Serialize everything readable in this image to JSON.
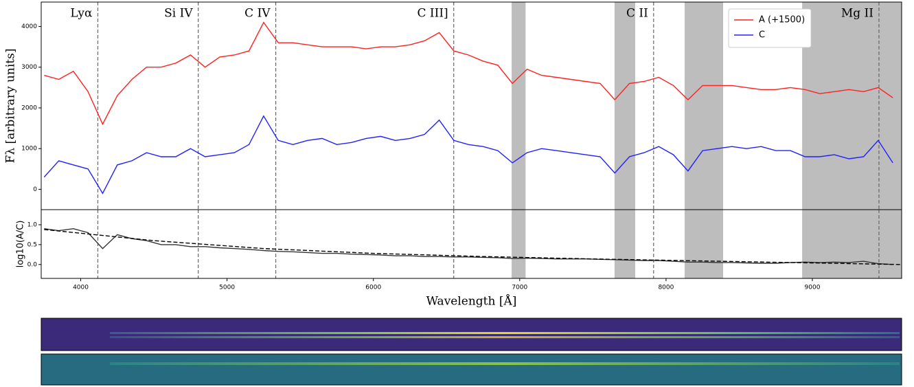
{
  "chart_data": [
    {
      "type": "line",
      "ylabel": "Fλ [arbitrary units]",
      "x": [
        3750,
        3850,
        3950,
        4050,
        4150,
        4250,
        4350,
        4450,
        4550,
        4650,
        4750,
        4850,
        4950,
        5050,
        5150,
        5250,
        5350,
        5450,
        5550,
        5650,
        5750,
        5850,
        5950,
        6050,
        6150,
        6250,
        6350,
        6450,
        6550,
        6650,
        6750,
        6850,
        6950,
        7050,
        7150,
        7250,
        7350,
        7450,
        7550,
        7650,
        7750,
        7850,
        7950,
        8050,
        8150,
        8250,
        8350,
        8450,
        8550,
        8650,
        8750,
        8850,
        8950,
        9050,
        9150,
        9250,
        9350,
        9450,
        9550
      ],
      "series": [
        {
          "name": "A (+1500)",
          "color": "#ff2020",
          "values": [
            2800,
            2700,
            2900,
            2400,
            1600,
            2300,
            2700,
            3000,
            3000,
            3100,
            3300,
            3000,
            3250,
            3300,
            3400,
            4100,
            3600,
            3600,
            3550,
            3500,
            3500,
            3500,
            3450,
            3500,
            3500,
            3550,
            3650,
            3850,
            3400,
            3300,
            3150,
            3050,
            2600,
            2950,
            2800,
            2750,
            2700,
            2650,
            2600,
            2200,
            2600,
            2650,
            2750,
            2550,
            2200,
            2550,
            2550,
            2550,
            2500,
            2450,
            2450,
            2500,
            2450,
            2350,
            2400,
            2450,
            2400,
            2500,
            2250
          ]
        },
        {
          "name": "C",
          "color": "#2020ff",
          "values": [
            300,
            700,
            600,
            500,
            -100,
            600,
            700,
            900,
            800,
            800,
            1000,
            800,
            850,
            900,
            1100,
            1800,
            1200,
            1100,
            1200,
            1250,
            1100,
            1150,
            1250,
            1300,
            1200,
            1250,
            1350,
            1700,
            1200,
            1100,
            1050,
            950,
            650,
            900,
            1000,
            950,
            900,
            850,
            800,
            400,
            800,
            900,
            1050,
            850,
            450,
            950,
            1000,
            1050,
            1000,
            1050,
            950,
            950,
            800,
            800,
            850,
            750,
            800,
            1200,
            650
          ]
        }
      ],
      "xlim": [
        3730,
        9610
      ],
      "ylim": [
        -500,
        4600
      ],
      "yticks": [
        0,
        1000,
        2000,
        3000,
        4000
      ],
      "legend": "upper right",
      "shaded_regions": [
        [
          6945,
          7040
        ],
        [
          7648,
          7789
        ],
        [
          8127,
          8390
        ],
        [
          8930,
          9610
        ]
      ],
      "reference_lines": [
        {
          "x": 4117,
          "label": "Lyα"
        },
        {
          "x": 4803,
          "label": "Si IV"
        },
        {
          "x": 5333,
          "label": "C IV"
        },
        {
          "x": 6549,
          "label": "C III]"
        },
        {
          "x": 7915,
          "label": "C II"
        },
        {
          "x": 9455,
          "label": "Mg II"
        }
      ]
    },
    {
      "type": "line",
      "ylabel": "log10(A/C)",
      "xlabel": "Wavelength [Å]",
      "x": [
        3750,
        3850,
        3950,
        4050,
        4150,
        4250,
        4350,
        4450,
        4550,
        4650,
        4750,
        4850,
        4950,
        5050,
        5150,
        5250,
        5350,
        5450,
        5550,
        5650,
        5750,
        5850,
        5950,
        6050,
        6150,
        6250,
        6350,
        6450,
        6550,
        6650,
        6750,
        6850,
        6950,
        7050,
        7150,
        7250,
        7350,
        7450,
        7550,
        7650,
        7750,
        7850,
        7950,
        8050,
        8150,
        8250,
        8350,
        8450,
        8550,
        8650,
        8750,
        8850,
        8950,
        9050,
        9150,
        9250,
        9350,
        9450,
        9550
      ],
      "series": [
        {
          "color": "#333333",
          "values": [
            0.9,
            0.85,
            0.9,
            0.8,
            0.4,
            0.75,
            0.65,
            0.6,
            0.5,
            0.5,
            0.45,
            0.45,
            0.42,
            0.4,
            0.38,
            0.35,
            0.33,
            0.32,
            0.3,
            0.28,
            0.28,
            0.26,
            0.25,
            0.24,
            0.22,
            0.22,
            0.2,
            0.2,
            0.19,
            0.19,
            0.18,
            0.17,
            0.15,
            0.16,
            0.15,
            0.14,
            0.14,
            0.14,
            0.13,
            0.12,
            0.11,
            0.1,
            0.1,
            0.08,
            0.06,
            0.06,
            0.05,
            0.05,
            0.04,
            0.03,
            0.03,
            0.05,
            0.06,
            0.05,
            0.06,
            0.05,
            0.08,
            0.02,
            0.0
          ]
        },
        {
          "color": "#000000",
          "dashed": true,
          "x": [
            3750,
            4500,
            5250,
            6000,
            6750,
            7500,
            8250,
            9000,
            9600
          ],
          "values": [
            0.88,
            0.6,
            0.4,
            0.28,
            0.2,
            0.14,
            0.09,
            0.04,
            0.0
          ]
        }
      ],
      "xlim": [
        3730,
        9610
      ],
      "ylim": [
        -0.35,
        1.38
      ],
      "xticks": [
        4000,
        5000,
        6000,
        7000,
        8000,
        9000
      ],
      "yticks": [
        {
          "value": 0,
          "label": "0.0"
        },
        {
          "value": 0.5,
          "label": "0.5"
        },
        {
          "value": 1,
          "label": "1.0"
        }
      ]
    }
  ]
}
